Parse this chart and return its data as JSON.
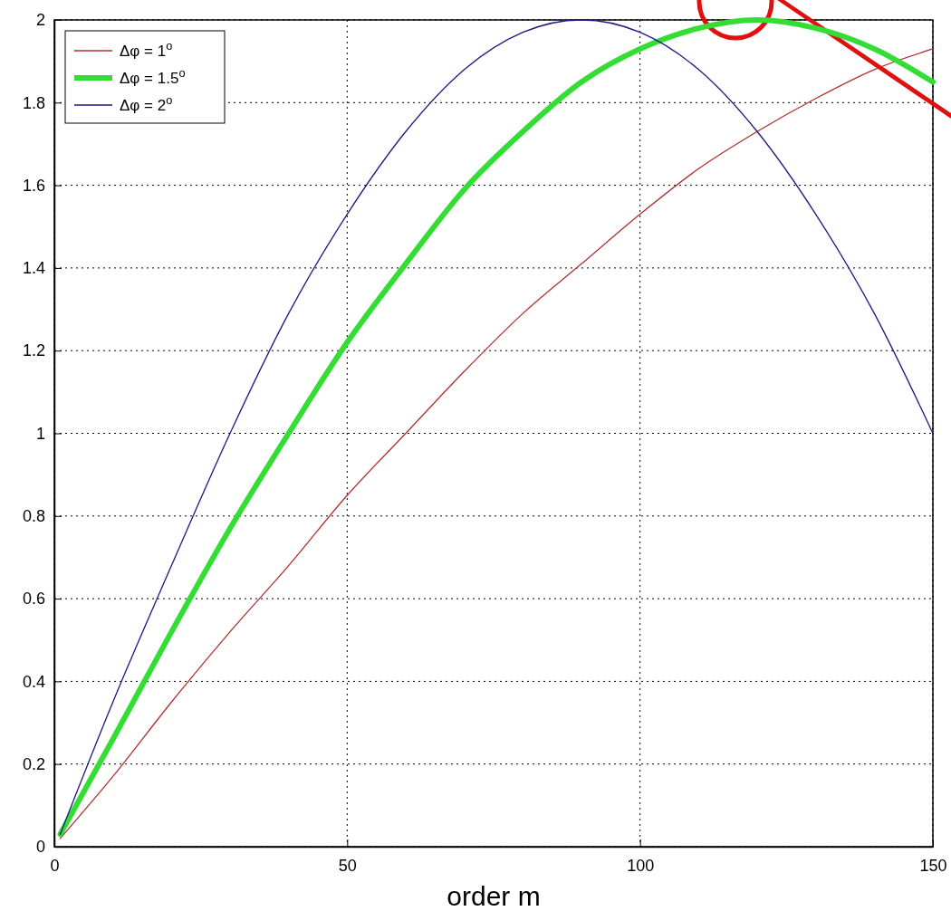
{
  "chart_data": {
    "type": "line",
    "xlabel": "order m",
    "x": [
      1,
      10,
      20,
      30,
      40,
      50,
      60,
      70,
      80,
      90,
      100,
      110,
      120,
      130,
      140,
      150
    ],
    "series": [
      {
        "name": "Δφ = 1$^{o}$",
        "color": "#b03030",
        "values": [
          0.02,
          0.17,
          0.35,
          0.52,
          0.68,
          0.85,
          1.0,
          1.15,
          1.29,
          1.41,
          1.53,
          1.64,
          1.73,
          1.81,
          1.88,
          1.93
        ]
      },
      {
        "name": "Δφ = 1.5$^{o}$",
        "color": "#33dd33",
        "values": [
          0.03,
          0.26,
          0.52,
          0.77,
          1.0,
          1.22,
          1.41,
          1.59,
          1.73,
          1.85,
          1.93,
          1.98,
          2.0,
          1.98,
          1.93,
          1.85
        ]
      },
      {
        "name": "Δφ = 2$^{o}$",
        "color": "#1a1a80",
        "values": [
          0.03,
          0.35,
          0.68,
          1.0,
          1.29,
          1.53,
          1.73,
          1.88,
          1.97,
          2.0,
          1.97,
          1.88,
          1.73,
          1.53,
          1.29,
          1.0
        ]
      }
    ],
    "xlim": [
      0,
      150
    ],
    "xticks": [
      0,
      50,
      100,
      150
    ],
    "ylim": [
      0,
      2
    ],
    "yticks": [
      0,
      0.2,
      0.4,
      0.6,
      0.8,
      1,
      1.2,
      1.4,
      1.6,
      1.8,
      2
    ],
    "grid": true,
    "legend": "top left",
    "marker": "none",
    "line_style": "solid"
  }
}
